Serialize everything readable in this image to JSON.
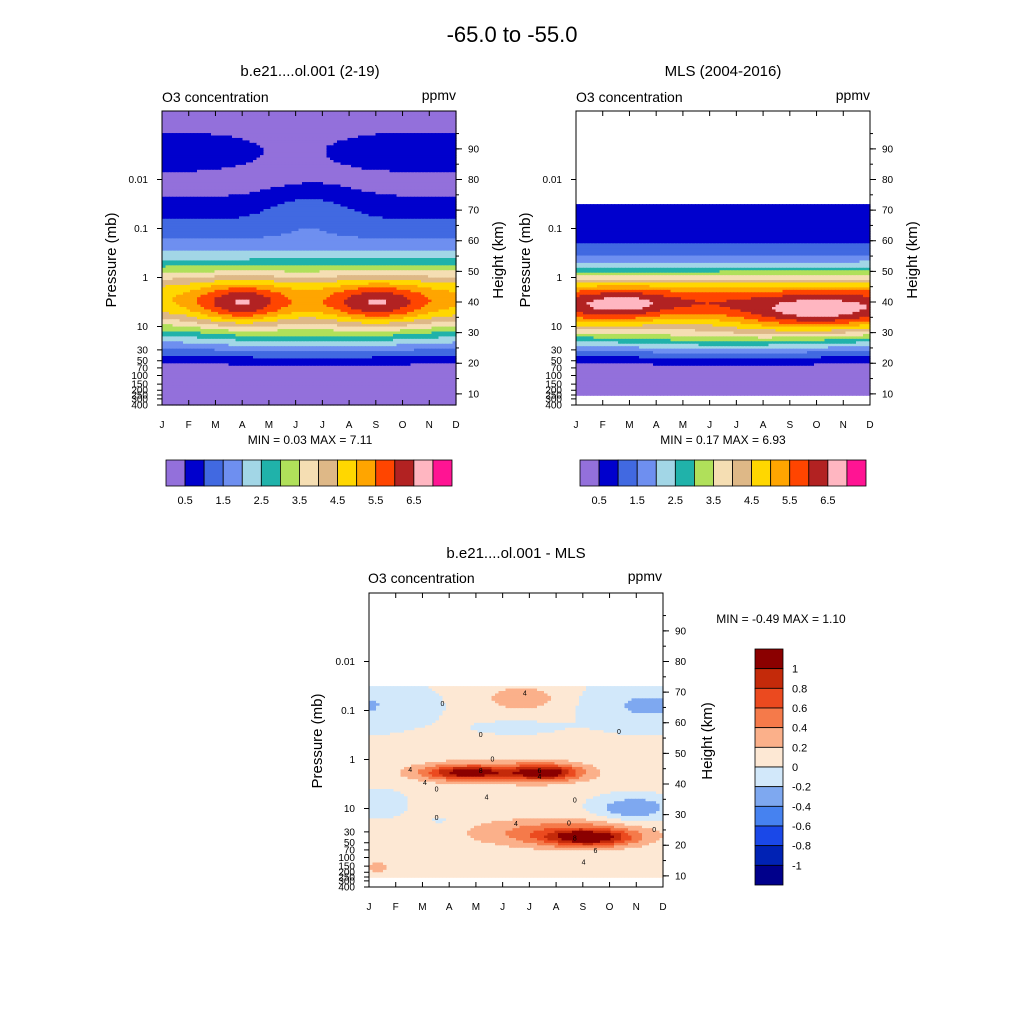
{
  "page": {
    "title": "-65.0 to -55.0"
  },
  "colors": {
    "frame": "#000000",
    "missing": "#ffffff"
  },
  "chart_data": [
    {
      "type": "heatmap",
      "id": "model",
      "title": "b.e21....ol.001 (2-19)",
      "left_label": "O3 concentration",
      "right_label": "ppmv",
      "ylabel": "Pressure (mb)",
      "y2label": "Height (km)",
      "months": [
        "J",
        "F",
        "M",
        "A",
        "M",
        "J",
        "J",
        "A",
        "S",
        "O",
        "N",
        "D"
      ],
      "pressure_ticks": [
        {
          "v": 0.01,
          "t": "0.01"
        },
        {
          "v": 0.1,
          "t": "0.1"
        },
        {
          "v": 1,
          "t": "1"
        },
        {
          "v": 10,
          "t": "10"
        },
        {
          "v": 30,
          "t": "30"
        },
        {
          "v": 50,
          "t": "50"
        },
        {
          "v": 70,
          "t": "70"
        },
        {
          "v": 100,
          "t": "100"
        },
        {
          "v": 150,
          "t": "150"
        },
        {
          "v": 200,
          "t": "200"
        },
        {
          "v": 250,
          "t": "250"
        },
        {
          "v": 300,
          "t": "300"
        },
        {
          "v": 400,
          "t": "400"
        }
      ],
      "height_ticks": [
        10,
        20,
        30,
        40,
        50,
        60,
        70,
        80,
        90
      ],
      "min_max": "MIN =   0.03  MAX =   7.11",
      "levels": [
        0.5,
        1,
        1.5,
        2,
        2.5,
        3,
        3.5,
        4,
        4.5,
        5,
        5.5,
        6,
        6.5,
        7
      ],
      "colorbar_labels": [
        "0.5",
        "1.5",
        "2.5",
        "3.5",
        "4.5",
        "5.5",
        "6.5"
      ],
      "colors": [
        "#9370db",
        "#0000cd",
        "#4169e1",
        "#6e8ff0",
        "#a2d6e6",
        "#20b2aa",
        "#b0e05a",
        "#f5deb3",
        "#deb887",
        "#ffd700",
        "#ffa500",
        "#ff4500",
        "#b22222",
        "#ffb6c1",
        "#ff1493"
      ],
      "data_range": [
        0.0004,
        400
      ],
      "features": {
        "stratmax1": 4.8,
        "stratmax2": 5.0,
        "peak1": 7.11,
        "peak2": 6.9,
        "peak3": 6.95,
        "polar_value": 0.9
      }
    },
    {
      "type": "heatmap",
      "id": "mls",
      "title": "MLS (2004-2016)",
      "left_label": "O3 concentration",
      "right_label": "ppmv",
      "ylabel": "Pressure (mb)",
      "y2label": "Height (km)",
      "months": [
        "J",
        "F",
        "M",
        "A",
        "M",
        "J",
        "J",
        "A",
        "S",
        "O",
        "N",
        "D"
      ],
      "pressure_ticks": [
        {
          "v": 0.01,
          "t": "0.01"
        },
        {
          "v": 0.1,
          "t": "0.1"
        },
        {
          "v": 1,
          "t": "1"
        },
        {
          "v": 10,
          "t": "10"
        },
        {
          "v": 30,
          "t": "30"
        },
        {
          "v": 50,
          "t": "50"
        },
        {
          "v": 70,
          "t": "70"
        },
        {
          "v": 100,
          "t": "100"
        },
        {
          "v": 150,
          "t": "150"
        },
        {
          "v": 200,
          "t": "200"
        },
        {
          "v": 250,
          "t": "250"
        },
        {
          "v": 300,
          "t": "300"
        },
        {
          "v": 400,
          "t": "400"
        }
      ],
      "height_ticks": [
        10,
        20,
        30,
        40,
        50,
        60,
        70,
        80,
        90
      ],
      "min_max": "MIN =   0.17  MAX =   6.93",
      "levels": [
        0.5,
        1,
        1.5,
        2,
        2.5,
        3,
        3.5,
        4,
        4.5,
        5,
        5.5,
        6,
        6.5,
        7
      ],
      "colorbar_labels": [
        "0.5",
        "1.5",
        "2.5",
        "3.5",
        "4.5",
        "5.5",
        "6.5"
      ],
      "colors": [
        "#9370db",
        "#0000cd",
        "#4169e1",
        "#6e8ff0",
        "#a2d6e6",
        "#20b2aa",
        "#b0e05a",
        "#f5deb3",
        "#deb887",
        "#ffd700",
        "#ffa500",
        "#ff4500",
        "#b22222",
        "#ffb6c1",
        "#ff1493"
      ],
      "data_range": [
        0.03,
        260
      ],
      "features": {
        "stratmax1": 5.9,
        "stratmax2": 6.1,
        "peak1": 6.6,
        "peak2": 6.93,
        "peak3": 0,
        "polar_value": 0.7
      }
    },
    {
      "type": "heatmap",
      "id": "diff",
      "title": "b.e21....ol.001 - MLS",
      "left_label": "O3 concentration",
      "right_label": "ppmv",
      "ylabel": "Pressure (mb)",
      "y2label": "Height (km)",
      "months": [
        "J",
        "F",
        "M",
        "A",
        "M",
        "J",
        "J",
        "A",
        "S",
        "O",
        "N",
        "D"
      ],
      "pressure_ticks": [
        {
          "v": 0.01,
          "t": "0.01"
        },
        {
          "v": 0.1,
          "t": "0.1"
        },
        {
          "v": 1,
          "t": "1"
        },
        {
          "v": 10,
          "t": "10"
        },
        {
          "v": 30,
          "t": "30"
        },
        {
          "v": 50,
          "t": "50"
        },
        {
          "v": 70,
          "t": "70"
        },
        {
          "v": 100,
          "t": "100"
        },
        {
          "v": 150,
          "t": "150"
        },
        {
          "v": 200,
          "t": "200"
        },
        {
          "v": 250,
          "t": "250"
        },
        {
          "v": 300,
          "t": "300"
        },
        {
          "v": 400,
          "t": "400"
        }
      ],
      "height_ticks": [
        10,
        20,
        30,
        40,
        50,
        60,
        70,
        80,
        90
      ],
      "min_max": "MIN =  -0.49  MAX =   1.10",
      "levels": [
        -1,
        -0.8,
        -0.6,
        -0.4,
        -0.2,
        0,
        0.2,
        0.4,
        0.6,
        0.8,
        1
      ],
      "colorbar_labels": [
        "1",
        "0.8",
        "0.6",
        "0.4",
        "0.2",
        "0",
        "-0.2",
        "-0.4",
        "-0.6",
        "-0.8",
        "-1"
      ],
      "colors": [
        "#00008b",
        "#0022b4",
        "#1a48e8",
        "#4682f0",
        "#7ea8f0",
        "#d2e8fa",
        "#fde8d4",
        "#fbb08a",
        "#f57a4a",
        "#eb4a1f",
        "#c42a0a",
        "#8b0000"
      ],
      "data_range": [
        0.03,
        260
      ],
      "contour_labels": [
        {
          "x": 0.53,
          "p": 0.05,
          "t": "4"
        },
        {
          "x": 0.25,
          "p": 0.08,
          "t": "0"
        },
        {
          "x": 0.38,
          "p": 0.35,
          "t": "0"
        },
        {
          "x": 0.85,
          "p": 0.3,
          "t": "0"
        },
        {
          "x": 0.42,
          "p": 1.1,
          "t": "0"
        },
        {
          "x": 0.14,
          "p": 1.8,
          "t": "4"
        },
        {
          "x": 0.38,
          "p": 1.9,
          "t": "8"
        },
        {
          "x": 0.58,
          "p": 1.9,
          "t": "6"
        },
        {
          "x": 0.19,
          "p": 3.3,
          "t": "4"
        },
        {
          "x": 0.58,
          "p": 2.5,
          "t": "4"
        },
        {
          "x": 0.4,
          "p": 6.5,
          "t": "4"
        },
        {
          "x": 0.7,
          "p": 7.5,
          "t": "0"
        },
        {
          "x": 0.23,
          "p": 4.5,
          "t": "0"
        },
        {
          "x": 0.23,
          "p": 17,
          "t": "0"
        },
        {
          "x": 0.5,
          "p": 23,
          "t": "4"
        },
        {
          "x": 0.7,
          "p": 45,
          "t": "8"
        },
        {
          "x": 0.77,
          "p": 80,
          "t": "6"
        },
        {
          "x": 0.73,
          "p": 140,
          "t": "4"
        },
        {
          "x": 0.97,
          "p": 30,
          "t": "0"
        },
        {
          "x": 0.68,
          "p": 22,
          "t": "0"
        }
      ]
    }
  ]
}
